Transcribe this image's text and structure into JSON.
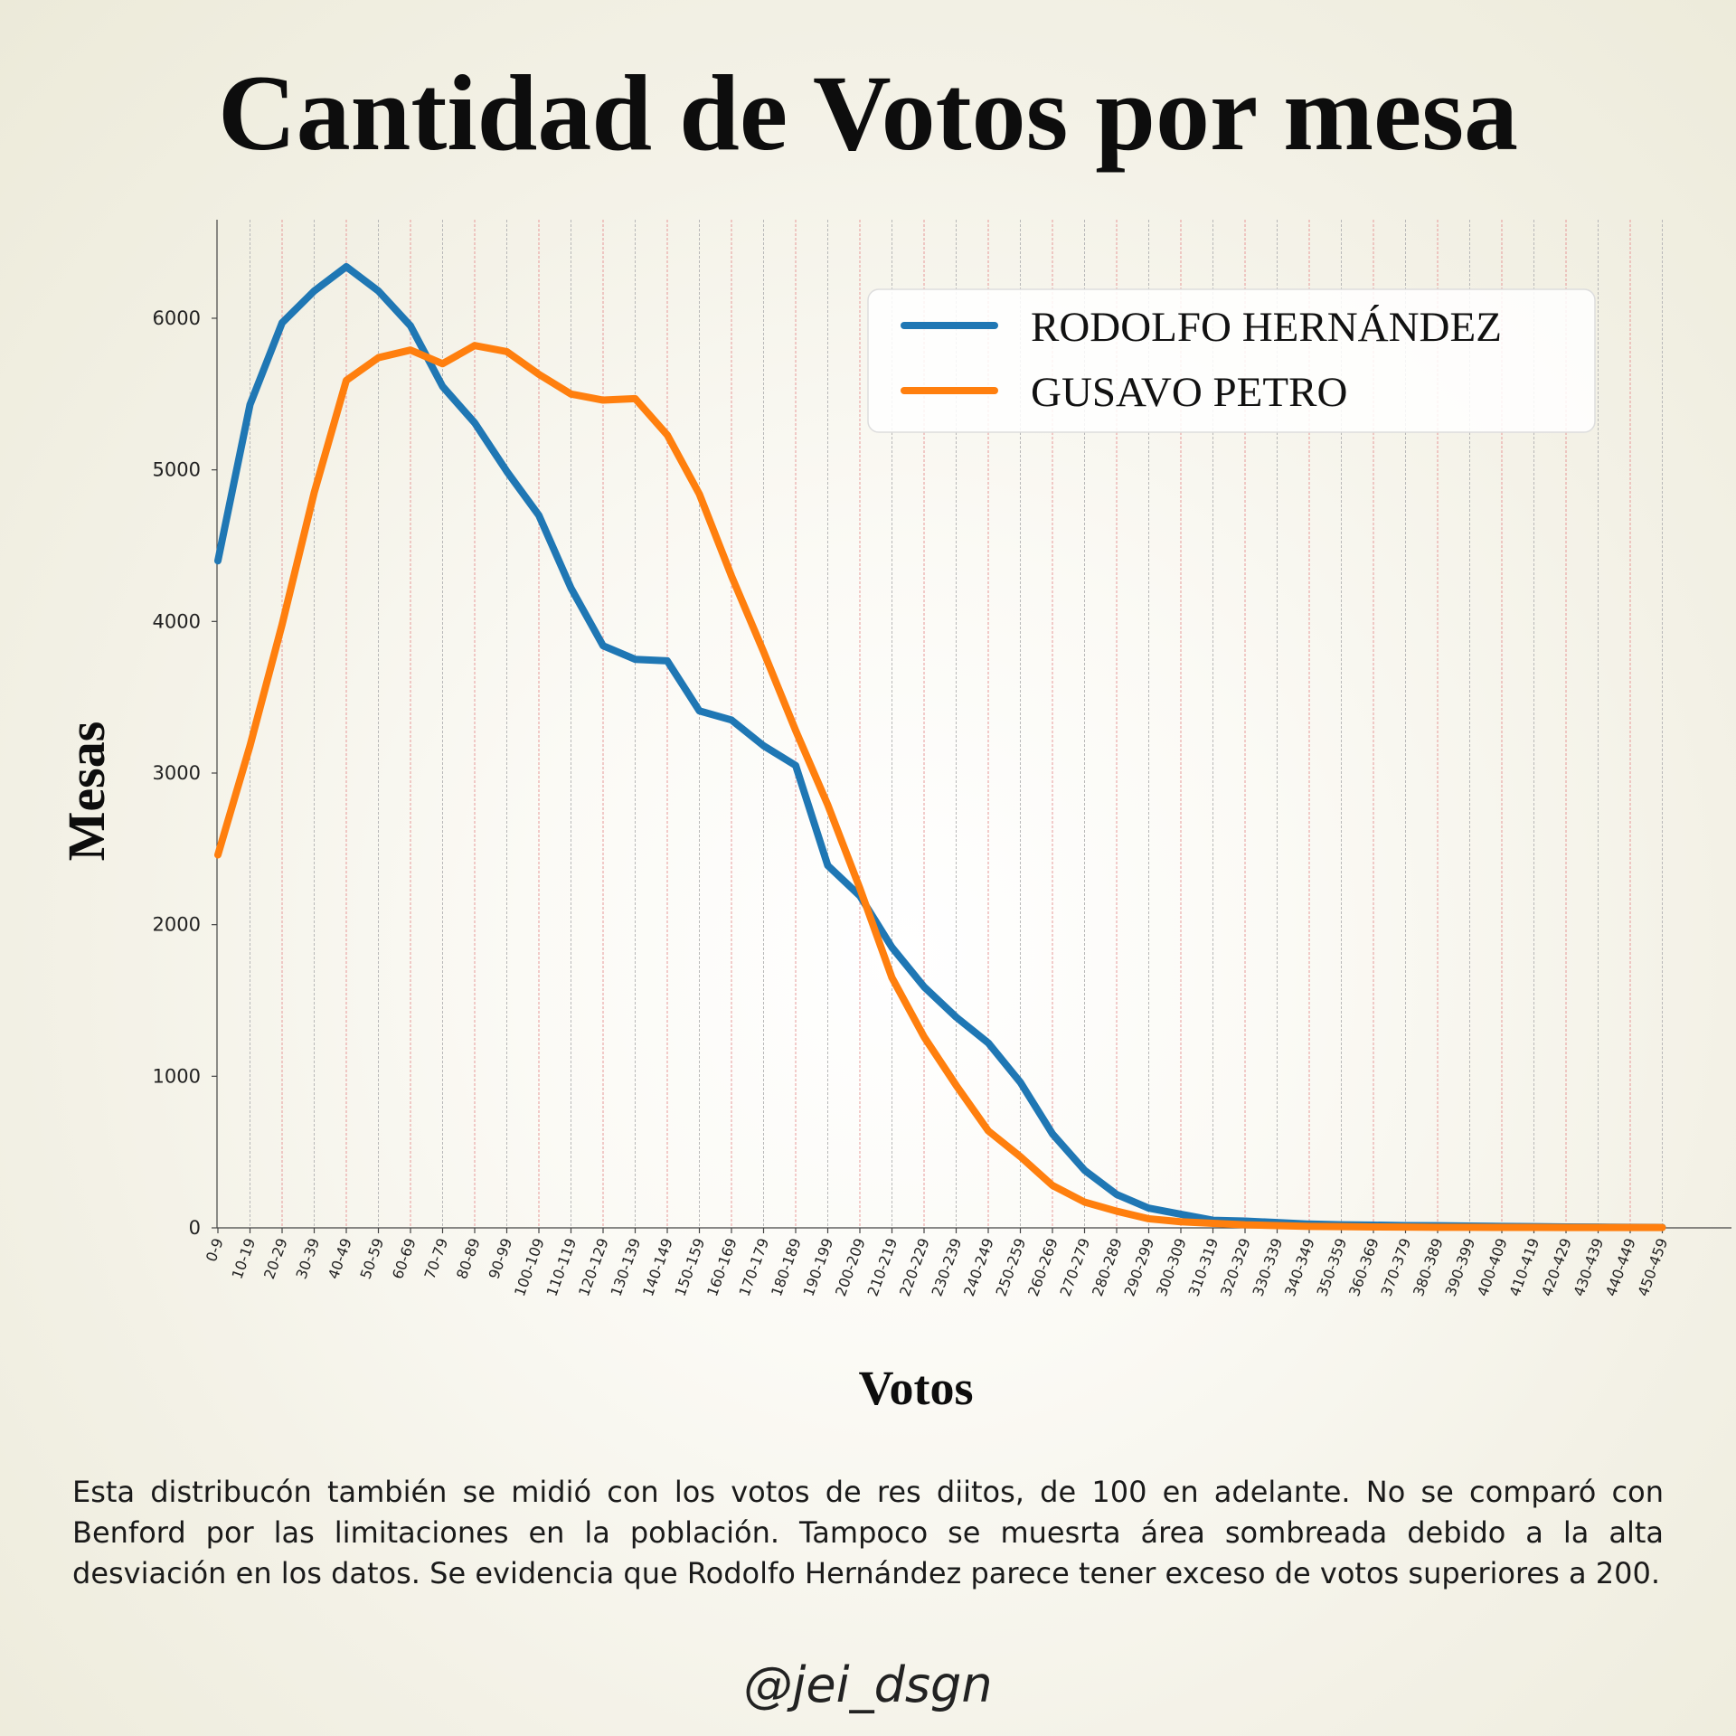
{
  "chart_data": {
    "type": "line",
    "title": "Cantidad de Votos por mesa",
    "xlabel": "Votos",
    "ylabel": "Mesas",
    "categories": [
      "0-9",
      "10-19",
      "20-29",
      "30-39",
      "40-49",
      "50-59",
      "60-69",
      "70-79",
      "80-89",
      "90-99",
      "100-109",
      "110-119",
      "120-129",
      "130-139",
      "140-149",
      "150-159",
      "160-169",
      "170-179",
      "180-189",
      "190-199",
      "200-209",
      "210-219",
      "220-229",
      "230-239",
      "240-249",
      "250-259",
      "260-269",
      "270-279",
      "280-289",
      "290-299",
      "300-309",
      "310-319",
      "320-329",
      "330-339",
      "340-349",
      "350-359",
      "360-369",
      "370-379",
      "380-389",
      "390-399",
      "400-409",
      "410-419",
      "420-429",
      "430-439",
      "440-449",
      "450-459"
    ],
    "ylim": [
      0,
      6650
    ],
    "yticks": [
      0,
      1000,
      2000,
      3000,
      4000,
      5000,
      6000
    ],
    "legend_position": "top-right",
    "series": [
      {
        "name": "RODOLFO HERNÁNDEZ",
        "color": "#1f77b4",
        "values": [
          4400,
          5430,
          5970,
          6180,
          6340,
          6180,
          5950,
          5550,
          5310,
          4990,
          4700,
          4220,
          3840,
          3750,
          3740,
          3410,
          3350,
          3180,
          3050,
          2390,
          2190,
          1850,
          1590,
          1390,
          1220,
          960,
          620,
          380,
          220,
          130,
          90,
          50,
          45,
          35,
          25,
          20,
          18,
          15,
          14,
          12,
          10,
          8,
          6,
          5,
          4,
          3
        ]
      },
      {
        "name": "GUSAVO PETRO",
        "color": "#ff7f0e",
        "values": [
          2460,
          3180,
          3980,
          4850,
          5590,
          5740,
          5790,
          5700,
          5820,
          5780,
          5630,
          5500,
          5460,
          5470,
          5230,
          4840,
          4300,
          3800,
          3280,
          2790,
          2240,
          1650,
          1260,
          940,
          640,
          470,
          280,
          170,
          110,
          60,
          40,
          30,
          20,
          15,
          10,
          8,
          6,
          5,
          4,
          4,
          3,
          3,
          2,
          2,
          2,
          2
        ]
      }
    ]
  },
  "note": "Esta distribucón también se midió con los votos de res diitos, de 100 en adelante. No se comparó con Benford por las limitaciones en la población. Tampoco se muesrta área sombreada debido a la alta desviación en los datos. Se evidencia que Rodolfo Hernández parece tener exceso de votos superiores a 200.",
  "signature": "@jei_dsgn"
}
